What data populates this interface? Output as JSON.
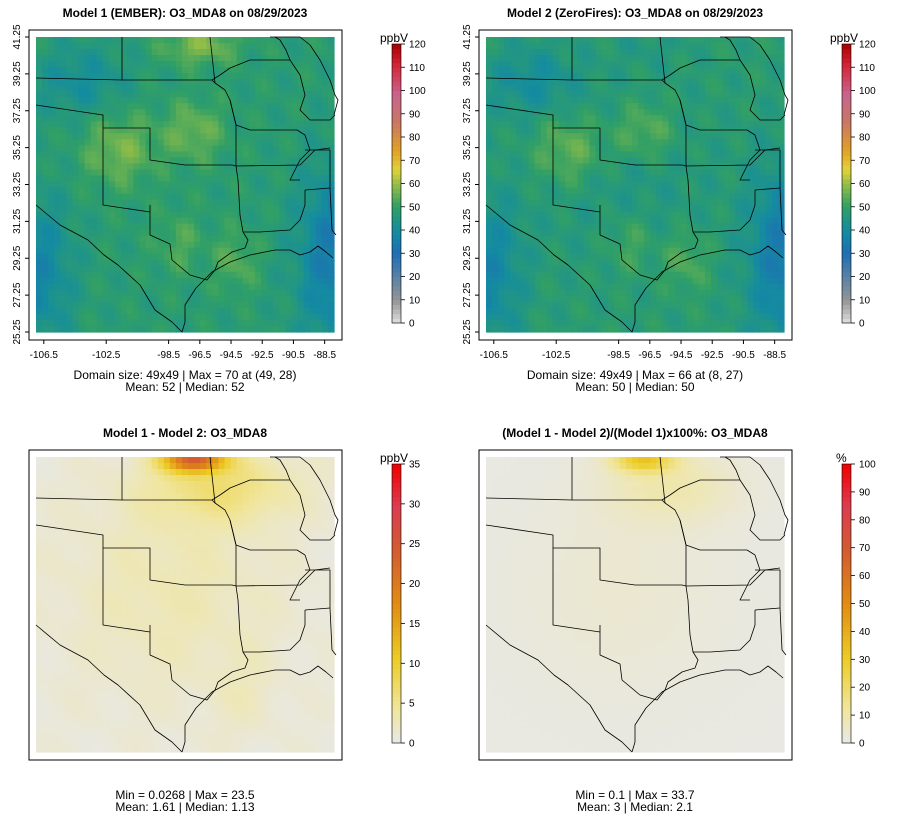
{
  "panels": [
    {
      "title": "Model 1 (EMBER): O3_MDA8 on 08/29/2023",
      "unit": "ppbV",
      "stats_line1": "Domain size: 49x49 | Max = 70 at (49, 28)",
      "stats_line2": "Mean: 52 |  Median: 52",
      "map_type": "absolute",
      "colorbar_ticks": [
        "0",
        "10",
        "20",
        "30",
        "40",
        "50",
        "60",
        "70",
        "80",
        "90",
        "100",
        "110",
        "120"
      ],
      "colorbar_max": 120,
      "show_axes": true
    },
    {
      "title": "Model 2 (ZeroFires): O3_MDA8 on 08/29/2023",
      "unit": "ppbV",
      "stats_line1": "Domain size: 49x49 | Max = 66 at (8, 27)",
      "stats_line2": "Mean: 50 |  Median: 50",
      "map_type": "absolute",
      "colorbar_ticks": [
        "0",
        "10",
        "20",
        "30",
        "40",
        "50",
        "60",
        "70",
        "80",
        "90",
        "100",
        "110",
        "120"
      ],
      "colorbar_max": 120,
      "show_axes": true
    },
    {
      "title": "Model 1 - Model 2: O3_MDA8",
      "unit": "ppbV",
      "stats_line1": "Min = 0.0268 | Max = 23.5",
      "stats_line2": "Mean: 1.61 |  Median: 1.13",
      "map_type": "difference",
      "colorbar_ticks": [
        "0",
        "5",
        "10",
        "15",
        "20",
        "25",
        "30",
        "35"
      ],
      "colorbar_max": 35,
      "show_axes": false
    },
    {
      "title": "(Model 1 - Model 2)/(Model 1)x100%: O3_MDA8",
      "unit": "%",
      "stats_line1": "Min = 0.1 | Max = 33.7",
      "stats_line2": "Mean: 3 |  Median: 2.1",
      "map_type": "percent",
      "colorbar_ticks": [
        "0",
        "10",
        "20",
        "30",
        "40",
        "50",
        "60",
        "70",
        "80",
        "90",
        "100"
      ],
      "colorbar_max": 100,
      "show_axes": false
    }
  ],
  "x_tick_labels": [
    "-106.5",
    "-102.5",
    "-98.5",
    "-96.5",
    "-94.5",
    "-92.5",
    "-90.5",
    "-88.5"
  ],
  "y_tick_labels": [
    "25.25",
    "27.25",
    "29.25",
    "31.25",
    "33.25",
    "35.25",
    "37.25",
    "39.25",
    "41.25"
  ],
  "chart_data": [
    {
      "type": "heatmap",
      "title": "Model 1 (EMBER): O3_MDA8 on 08/29/2023",
      "grid": "49x49",
      "x_ticks": [
        -106.5,
        -102.5,
        -98.5,
        -96.5,
        -94.5,
        -92.5,
        -90.5,
        -88.5
      ],
      "y_ticks": [
        25.25,
        27.25,
        29.25,
        31.25,
        33.25,
        35.25,
        37.25,
        39.25,
        41.25
      ],
      "colorbar": {
        "label": "ppbV",
        "range": [
          0,
          120
        ]
      },
      "stats": {
        "max": 70,
        "max_at": [
          49,
          28
        ],
        "mean": 52,
        "median": 52
      }
    },
    {
      "type": "heatmap",
      "title": "Model 2 (ZeroFires): O3_MDA8 on 08/29/2023",
      "grid": "49x49",
      "x_ticks": [
        -106.5,
        -102.5,
        -98.5,
        -96.5,
        -94.5,
        -92.5,
        -90.5,
        -88.5
      ],
      "y_ticks": [
        25.25,
        27.25,
        29.25,
        31.25,
        33.25,
        35.25,
        37.25,
        39.25,
        41.25
      ],
      "colorbar": {
        "label": "ppbV",
        "range": [
          0,
          120
        ]
      },
      "stats": {
        "max": 66,
        "max_at": [
          8,
          27
        ],
        "mean": 50,
        "median": 50
      }
    },
    {
      "type": "heatmap",
      "title": "Model 1 - Model 2: O3_MDA8",
      "colorbar": {
        "label": "ppbV",
        "range": [
          0,
          35
        ]
      },
      "stats": {
        "min": 0.0268,
        "max": 23.5,
        "mean": 1.61,
        "median": 1.13
      }
    },
    {
      "type": "heatmap",
      "title": "(Model 1 - Model 2)/(Model 1)x100%: O3_MDA8",
      "colorbar": {
        "label": "%",
        "range": [
          0,
          100
        ]
      },
      "stats": {
        "min": 0.1,
        "max": 33.7,
        "mean": 3,
        "median": 2.1
      }
    }
  ]
}
